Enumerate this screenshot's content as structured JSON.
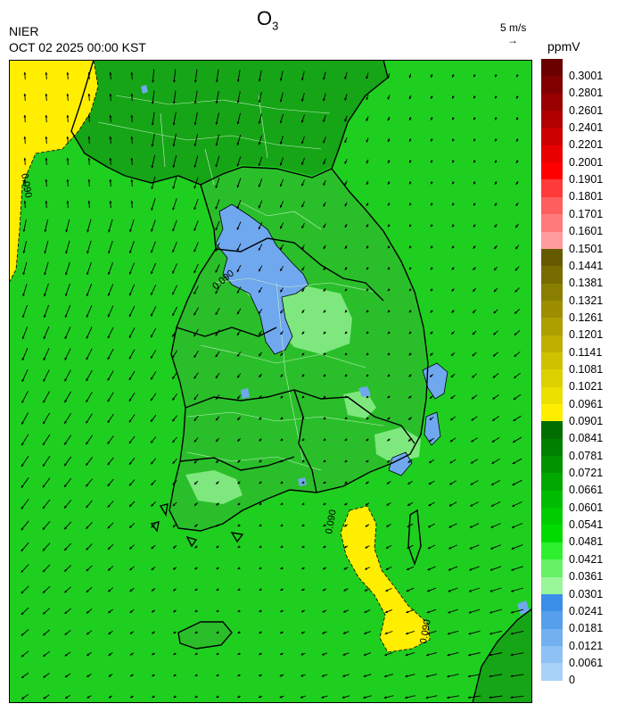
{
  "header": {
    "pollutant_base": "O",
    "pollutant_sub": "3",
    "organization": "NIER",
    "timestamp": "OCT 02 2025 00:00 KST",
    "wind_reference": "5 m/s",
    "wind_reference_arrow": "→",
    "unit": "ppmV"
  },
  "map": {
    "contour_label": "0.090",
    "colors": {
      "sea_green": "#1fcf1f",
      "land_green": "#2abf2a",
      "dark_green": "#16a516",
      "light_green": "#7ee87e",
      "blue": "#6fa8ee",
      "yellow": "#ffee00",
      "border": "#000000"
    }
  },
  "legend": {
    "labels": [
      "0.3001",
      "0.2801",
      "0.2601",
      "0.2401",
      "0.2201",
      "0.2001",
      "0.1901",
      "0.1801",
      "0.1701",
      "0.1601",
      "0.1501",
      "0.1441",
      "0.1381",
      "0.1321",
      "0.1261",
      "0.1201",
      "0.1141",
      "0.1081",
      "0.1021",
      "0.0961",
      "0.0901",
      "0.0841",
      "0.0781",
      "0.0721",
      "0.0661",
      "0.0601",
      "0.0541",
      "0.0481",
      "0.0421",
      "0.0361",
      "0.0301",
      "0.0241",
      "0.0181",
      "0.0121",
      "0.0061",
      "0"
    ],
    "colors": [
      "#6b0000",
      "#800000",
      "#990000",
      "#b00000",
      "#cc0000",
      "#e80000",
      "#ff0000",
      "#ff3a3a",
      "#ff5e5e",
      "#ff7a7a",
      "#ff9c9c",
      "#665a00",
      "#786c00",
      "#8a7e00",
      "#9c8e00",
      "#ad9f00",
      "#bfb000",
      "#cfc000",
      "#ddd000",
      "#ebe000",
      "#ffee00",
      "#006e00",
      "#008000",
      "#009400",
      "#00a800",
      "#00bc00",
      "#00cc00",
      "#00dc00",
      "#2ff02f",
      "#66f266",
      "#99f699",
      "#3b8fe8",
      "#569fec",
      "#72b0f0",
      "#8ec1f4",
      "#a8d2f8"
    ]
  }
}
